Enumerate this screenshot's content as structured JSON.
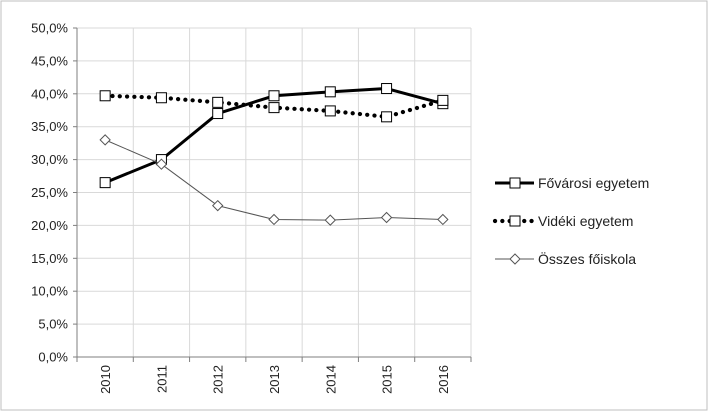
{
  "chart_data": {
    "type": "line",
    "title": "",
    "xlabel": "",
    "ylabel": "",
    "categories": [
      "2010",
      "2011",
      "2012",
      "2013",
      "2014",
      "2015",
      "2016"
    ],
    "ylim": [
      0,
      50
    ],
    "ytick_step": 5,
    "ytick_labels": [
      "0,0%",
      "5,0%",
      "10,0%",
      "15,0%",
      "20,0%",
      "25,0%",
      "30,0%",
      "35,0%",
      "40,0%",
      "45,0%",
      "50,0%"
    ],
    "grid": true,
    "legend_position": "right",
    "series": [
      {
        "name": "Fővárosi egyetem",
        "style": "thick-solid",
        "marker": "square",
        "values": [
          26.5,
          30.0,
          37.0,
          39.7,
          40.3,
          40.8,
          38.5
        ]
      },
      {
        "name": "Vidéki egyetem",
        "style": "dotted",
        "marker": "square",
        "values": [
          39.7,
          39.4,
          38.7,
          37.9,
          37.4,
          36.5,
          39.0
        ]
      },
      {
        "name": "Összes főiskola",
        "style": "thin-solid",
        "marker": "diamond",
        "values": [
          33.0,
          29.3,
          23.0,
          20.9,
          20.8,
          21.2,
          20.9
        ]
      }
    ],
    "colors": {
      "line": "#000000",
      "grid": "#d9d9d9",
      "border": "#bfbfbf"
    }
  }
}
